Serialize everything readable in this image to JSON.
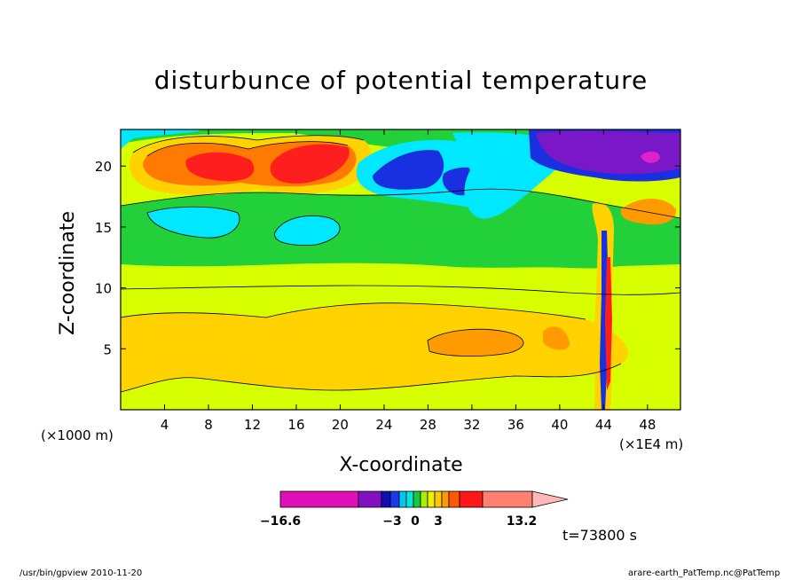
{
  "chart_data": {
    "type": "heatmap",
    "title": "disturbunce of potential temperature",
    "xlabel": "X-coordinate",
    "ylabel": "Z-coordinate",
    "x_unit_label": "(×1000 m)",
    "x_unit_label_right": "(×1E4 m)",
    "x_ticks": [
      "4",
      "8",
      "12",
      "16",
      "20",
      "24",
      "28",
      "32",
      "36",
      "40",
      "44",
      "48"
    ],
    "y_ticks": [
      "5",
      "10",
      "15",
      "20"
    ],
    "xlim": [
      0,
      51
    ],
    "ylim": [
      0,
      23
    ],
    "colorbar": {
      "labels": [
        "−16.6",
        "−3",
        "0",
        "3",
        "13.2"
      ],
      "colors": [
        "#e010b8",
        "#8010c0",
        "#1010b0",
        "#1838f0",
        "#00c8f0",
        "#00e8e0",
        "#18c840",
        "#a8f000",
        "#f0f000",
        "#ffc800",
        "#ff9a00",
        "#ff5a00",
        "#ff1818",
        "#ff8070",
        "#ffb8b8"
      ]
    },
    "regions": [
      {
        "level": "yellow-green",
        "color": "#d8ff00"
      },
      {
        "level": "yellow",
        "color": "#ffd200"
      },
      {
        "level": "orange",
        "color": "#ff9a00"
      },
      {
        "level": "green",
        "color": "#22d13a"
      },
      {
        "level": "cyan",
        "color": "#00e8ff"
      },
      {
        "level": "blue",
        "color": "#1830e0"
      },
      {
        "level": "purple",
        "color": "#7a18c8"
      },
      {
        "level": "red",
        "color": "#ff1e1e"
      },
      {
        "level": "magenta",
        "color": "#e020c8"
      }
    ]
  },
  "annotations": {
    "time": "t=73800 s"
  },
  "footer": {
    "left": "/usr/bin/gpview  2010-11-20",
    "right": "arare-earth_PatTemp.nc@PatTemp"
  }
}
